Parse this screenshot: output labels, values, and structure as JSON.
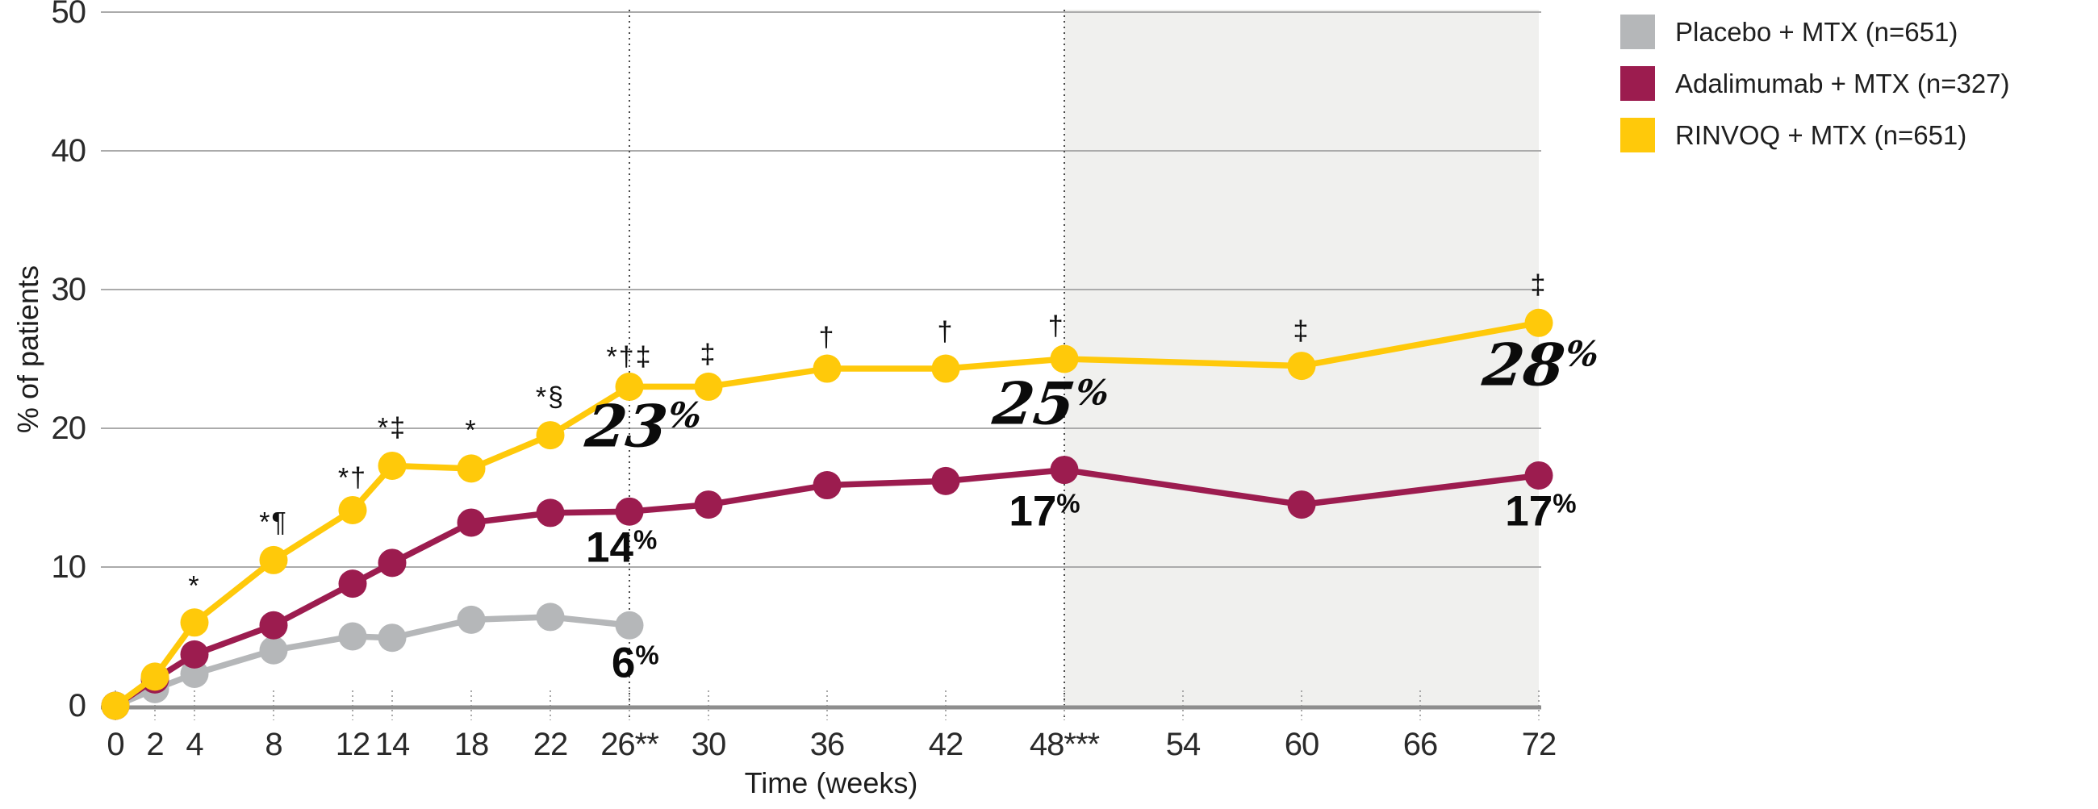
{
  "chart_data": {
    "type": "line",
    "title": "",
    "ylabel": "% of patients",
    "xlabel": "Time (weeks)",
    "ylim": [
      0,
      50
    ],
    "xlim": [
      0,
      72
    ],
    "grid": true,
    "legend_position": "top-right",
    "colors": {
      "placebo": "#b5b7b9",
      "adalimumab": "#9c1c4f",
      "rinvoq": "#ffc90a",
      "shaded_region": "#f0f0ee",
      "gridline": "#ababab",
      "axis_line": "#8e8e8e",
      "dotted_line": "#4a4a4a",
      "text": "#1d1d1d"
    },
    "y_ticks": [
      {
        "value": 0,
        "label": "0"
      },
      {
        "value": 10,
        "label": "10"
      },
      {
        "value": 20,
        "label": "20"
      },
      {
        "value": 30,
        "label": "30"
      },
      {
        "value": 40,
        "label": "40"
      },
      {
        "value": 50,
        "label": "50"
      }
    ],
    "x_ticks": [
      {
        "week": 0,
        "label": "0"
      },
      {
        "week": 2,
        "label": "2"
      },
      {
        "week": 4,
        "label": "4"
      },
      {
        "week": 8,
        "label": "8"
      },
      {
        "week": 12,
        "label": "12"
      },
      {
        "week": 14,
        "label": "14"
      },
      {
        "week": 18,
        "label": "18"
      },
      {
        "week": 22,
        "label": "22"
      },
      {
        "week": 26,
        "label": "26**"
      },
      {
        "week": 30,
        "label": "30"
      },
      {
        "week": 36,
        "label": "36"
      },
      {
        "week": 42,
        "label": "42"
      },
      {
        "week": 48,
        "label": "48***"
      },
      {
        "week": 54,
        "label": "54"
      },
      {
        "week": 60,
        "label": "60"
      },
      {
        "week": 66,
        "label": "66"
      },
      {
        "week": 72,
        "label": "72"
      }
    ],
    "shaded_region": {
      "from_week": 48,
      "to_week": 72
    },
    "dotted_vlines_weeks": [
      26,
      48
    ],
    "series": [
      {
        "name": "Placebo + MTX (n=651)",
        "color_key": "placebo",
        "x": [
          0,
          2,
          4,
          8,
          12,
          14,
          18,
          22,
          26
        ],
        "values": [
          0,
          1.2,
          2.3,
          4.0,
          5.0,
          4.9,
          6.2,
          6.4,
          5.8
        ]
      },
      {
        "name": "Adalimumab + MTX (n=327)",
        "color_key": "adalimumab",
        "x": [
          0,
          2,
          4,
          8,
          12,
          14,
          18,
          22,
          26,
          30,
          36,
          42,
          48,
          60,
          72
        ],
        "values": [
          0,
          1.9,
          3.7,
          5.8,
          8.8,
          10.3,
          13.2,
          13.9,
          14.0,
          14.5,
          15.9,
          16.2,
          17.0,
          14.5,
          16.6
        ]
      },
      {
        "name": "RINVOQ + MTX (n=651)",
        "color_key": "rinvoq",
        "x": [
          0,
          2,
          4,
          8,
          12,
          14,
          18,
          22,
          26,
          30,
          36,
          42,
          48,
          60,
          72
        ],
        "values": [
          0,
          2.1,
          6.0,
          10.5,
          14.1,
          17.3,
          17.1,
          19.5,
          23.0,
          23.0,
          24.3,
          24.3,
          25.0,
          24.5,
          27.6
        ]
      }
    ],
    "annotations": [
      {
        "symbols": "*",
        "week": 4,
        "pct": 8.6
      },
      {
        "symbols": "*¶",
        "week": 8,
        "pct": 13.2
      },
      {
        "symbols": "*†",
        "week": 12,
        "pct": 16.4
      },
      {
        "symbols": "*‡",
        "week": 14,
        "pct": 20.0
      },
      {
        "symbols": "*",
        "week": 18,
        "pct": 19.8
      },
      {
        "symbols": "*§",
        "week": 22,
        "pct": 22.2
      },
      {
        "symbols": "*†‡",
        "week": 26,
        "pct": 25.1
      },
      {
        "symbols": "‡",
        "week": 30,
        "pct": 25.3
      },
      {
        "symbols": "†",
        "week": 36,
        "pct": 26.5
      },
      {
        "symbols": "†",
        "week": 42,
        "pct": 26.9
      },
      {
        "symbols": "†",
        "week": 47.6,
        "pct": 27.3
      },
      {
        "symbols": "‡",
        "week": 60,
        "pct": 27.0
      },
      {
        "symbols": "‡",
        "week": 72,
        "pct": 30.3
      }
    ],
    "value_labels": [
      {
        "text": "23",
        "suffix": "%",
        "style": "script",
        "week": 26.7,
        "pct": 20.2
      },
      {
        "text": "25",
        "suffix": "%",
        "style": "script",
        "week": 47.3,
        "pct": 21.8
      },
      {
        "text": "28",
        "suffix": "%",
        "style": "script",
        "week": 72.1,
        "pct": 24.6
      },
      {
        "text": "14",
        "suffix": "%",
        "style": "bold",
        "week": 25.6,
        "pct": 11.4
      },
      {
        "text": "6",
        "suffix": "%",
        "style": "bold",
        "week": 26.3,
        "pct": 3.1
      },
      {
        "text": "17",
        "suffix": "%",
        "style": "bold",
        "week": 47.0,
        "pct": 14.0
      },
      {
        "text": "17",
        "suffix": "%",
        "style": "bold",
        "week": 72.1,
        "pct": 14.0
      }
    ]
  }
}
